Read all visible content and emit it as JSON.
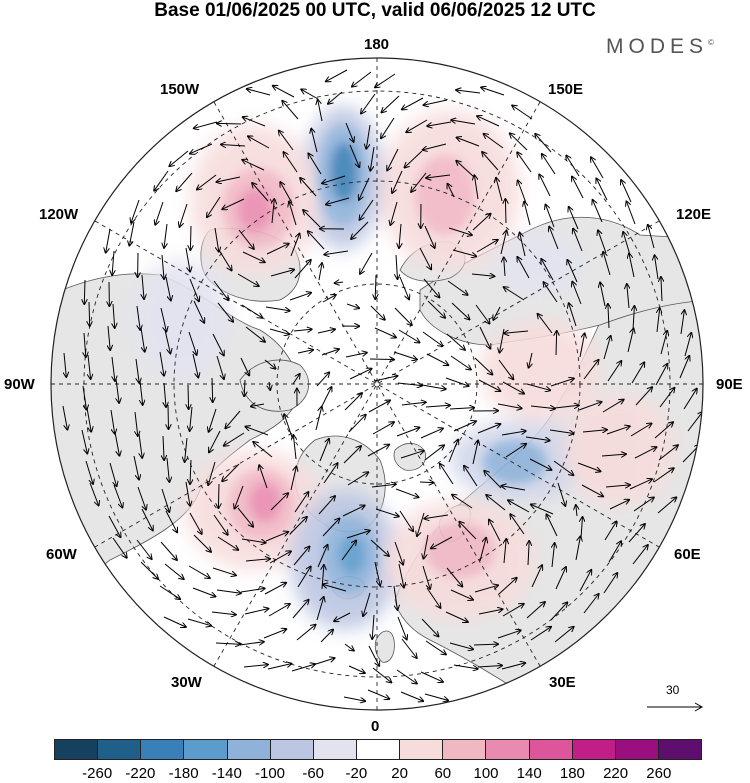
{
  "title": "Base 01/06/2025 00 UTC, valid 06/06/2025 12 UTC",
  "brand": "MODES",
  "brand_mark": "©",
  "longitude_labels": {
    "lon_180": "180",
    "lon_150W": "150W",
    "lon_150E": "150E",
    "lon_120W": "120W",
    "lon_120E": "120E",
    "lon_90W": "90W",
    "lon_90E": "90E",
    "lon_60W": "60W",
    "lon_60E": "60E",
    "lon_30W": "30W",
    "lon_30E": "30E",
    "lon_0": "0"
  },
  "reference_vector": {
    "value": "30"
  },
  "colorbar": {
    "colors": [
      "#15405e",
      "#1f5f8a",
      "#3a80b8",
      "#5c9ccc",
      "#8fb2da",
      "#bcc6e2",
      "#e3e3f0",
      "#ffffff",
      "#f7dcdc",
      "#f1b8c4",
      "#e98bb0",
      "#dd559b",
      "#c11e87",
      "#9b0e7f",
      "#5e0f6e"
    ],
    "tick_labels": [
      "-260",
      "-220",
      "-180",
      "-140",
      "-100",
      "-60",
      "-20",
      "20",
      "60",
      "100",
      "140",
      "180",
      "220",
      "260"
    ]
  },
  "colors": {
    "land": "#e6e6e6",
    "ocean": "#ffffff",
    "coast": "#444444",
    "grid": "#222222"
  },
  "anomaly_centers": [
    {
      "sign": "negative",
      "value": -220,
      "region": "Bering Sea / 180"
    },
    {
      "sign": "positive",
      "value": 150,
      "region": "Gulf of Alaska"
    },
    {
      "sign": "positive",
      "value": 110,
      "region": "Kamchatka"
    },
    {
      "sign": "negative",
      "value": -140,
      "region": "North Atlantic south of Iceland"
    },
    {
      "sign": "positive",
      "value": 150,
      "region": "Labrador Sea"
    },
    {
      "sign": "negative",
      "value": -140,
      "region": "Western Siberia"
    },
    {
      "sign": "positive",
      "value": 80,
      "region": "Scandinavia / Western Russia"
    }
  ]
}
